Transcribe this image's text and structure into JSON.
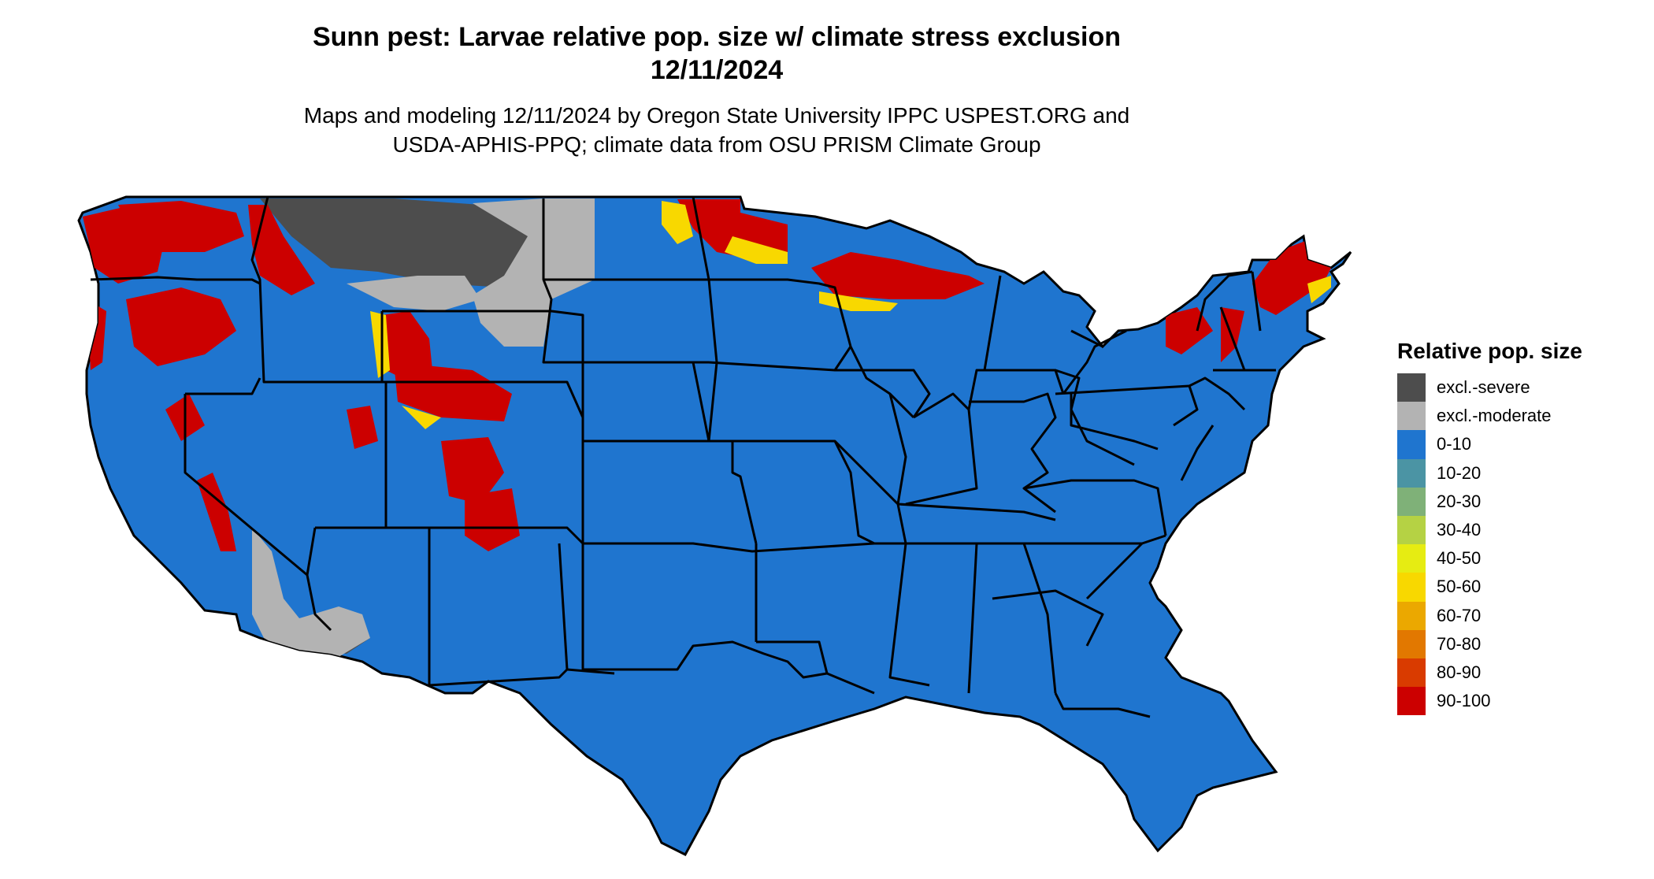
{
  "title": {
    "line1": "Sunn pest: Larvae relative pop. size w/ climate stress exclusion",
    "line2": "12/11/2024"
  },
  "subtitle": {
    "line1": "Maps and modeling 12/11/2024 by Oregon State University IPPC USPEST.ORG and",
    "line2": "USDA-APHIS-PPQ; climate data from OSU PRISM Climate Group"
  },
  "legend": {
    "title": "Relative pop. size",
    "items": [
      {
        "label": "excl.-severe",
        "color": "#4d4d4d"
      },
      {
        "label": "excl.-moderate",
        "color": "#b3b3b3"
      },
      {
        "label": "0-10",
        "color": "#1f75cf"
      },
      {
        "label": "10-20",
        "color": "#4b94a4"
      },
      {
        "label": "20-30",
        "color": "#7fb178"
      },
      {
        "label": "30-40",
        "color": "#b5d244"
      },
      {
        "label": "40-50",
        "color": "#e6ec12"
      },
      {
        "label": "50-60",
        "color": "#f8d800"
      },
      {
        "label": "60-70",
        "color": "#eba800"
      },
      {
        "label": "70-80",
        "color": "#e27800"
      },
      {
        "label": "80-90",
        "color": "#d93b00"
      },
      {
        "label": "90-100",
        "color": "#cc0000"
      }
    ]
  },
  "colors": {
    "base": "#1f75cf",
    "severe": "#4d4d4d",
    "moderate": "#b3b3b3",
    "high": "#cc0000",
    "mid": "#f8d800",
    "boundary": "#000000"
  }
}
